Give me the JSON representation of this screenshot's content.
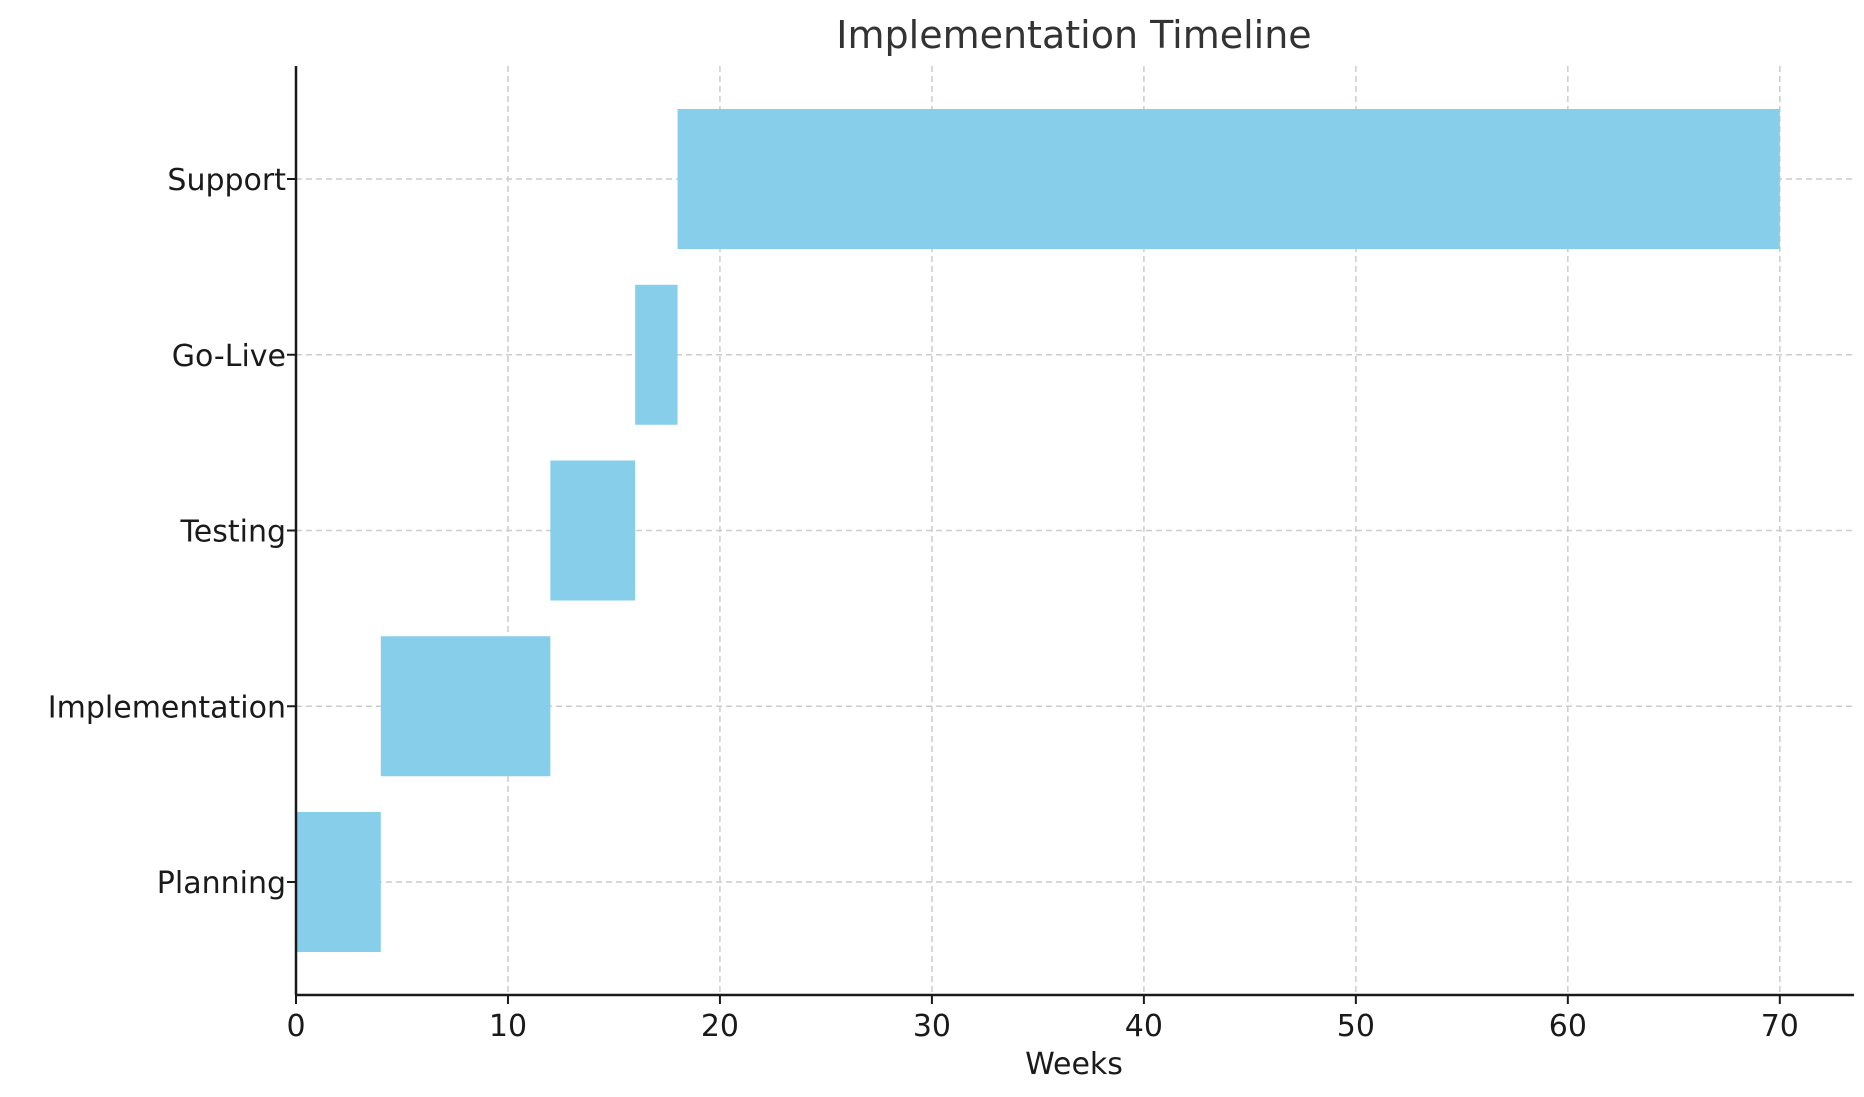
{
  "chart_data": {
    "type": "bar",
    "orientation": "horizontal",
    "title": "Implementation Timeline",
    "xlabel": "Weeks",
    "ylabel": "",
    "xlim": [
      0,
      73.5
    ],
    "xticks": [
      0,
      10,
      20,
      30,
      40,
      50,
      60,
      70
    ],
    "grid": true,
    "bar_color": "#87CEEB",
    "tasks": [
      {
        "label": "Planning",
        "start": 0,
        "end": 4
      },
      {
        "label": "Implementation",
        "start": 4,
        "end": 12
      },
      {
        "label": "Testing",
        "start": 12,
        "end": 16
      },
      {
        "label": "Go-Live",
        "start": 16,
        "end": 18
      },
      {
        "label": "Support",
        "start": 18,
        "end": 70
      }
    ]
  }
}
